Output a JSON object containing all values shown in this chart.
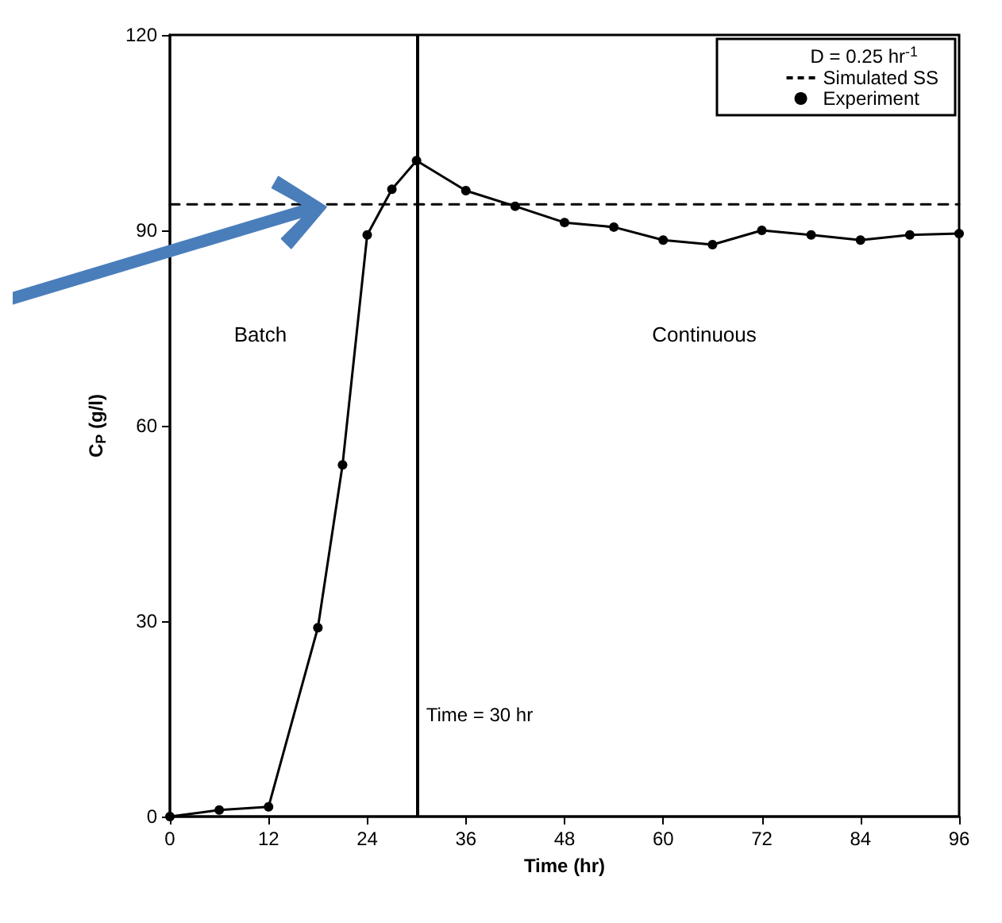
{
  "chart_data": {
    "type": "line",
    "xlabel": "Time (hr)",
    "ylabel": "C$_{P}$ (g/l)",
    "legend_title": "D = 0.25 hr$^{-1}$",
    "xlim": [
      0,
      96
    ],
    "xticks": [
      0,
      12,
      24,
      36,
      48,
      60,
      72,
      84,
      96
    ],
    "ylim": [
      0,
      120
    ],
    "yticks": [
      0,
      30,
      60,
      90,
      120
    ],
    "grid": false,
    "legend": "top right",
    "series": [
      {
        "name": "Simulated SS",
        "color": "#000000",
        "x": [
          0,
          96
        ],
        "values": [
          94,
          94
        ],
        "line_style": "dashed",
        "marker": "none"
      },
      {
        "name": "Experiment",
        "color": "#000000",
        "x": [
          0,
          6,
          12,
          18,
          21,
          24,
          27,
          30,
          36,
          42,
          48,
          54,
          60,
          66,
          72,
          78,
          84,
          90,
          96
        ],
        "values": [
          0,
          1,
          1.5,
          29,
          54,
          89.3,
          96.3,
          100.7,
          96.1,
          93.7,
          91.2,
          90.5,
          88.5,
          87.8,
          90,
          89.3,
          88.5,
          89.3,
          89.5
        ],
        "line_style": "solid",
        "marker": "circle"
      }
    ],
    "ref_lines": [
      {
        "axis": "x",
        "value": 30,
        "label": "Time = 30 hr",
        "color": "#000000",
        "line_style": "solid"
      }
    ],
    "annotations": [
      "Batch",
      "Continuous"
    ]
  }
}
